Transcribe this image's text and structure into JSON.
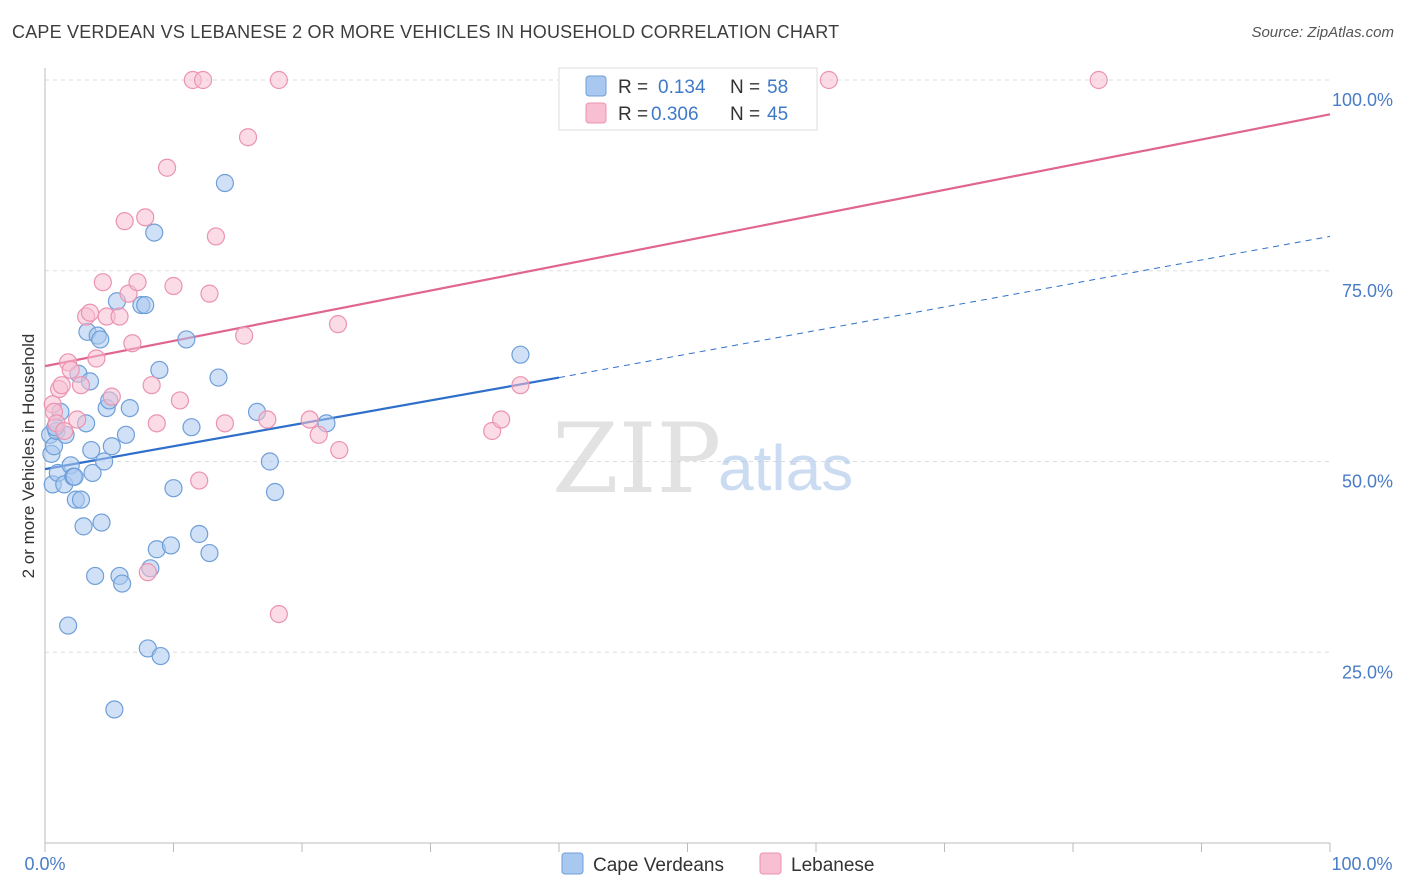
{
  "header": {
    "title": "CAPE VERDEAN VS LEBANESE 2 OR MORE VEHICLES IN HOUSEHOLD CORRELATION CHART",
    "source": "Source: ZipAtlas.com"
  },
  "watermark": {
    "zip": "ZIP",
    "atlas": "atlas"
  },
  "legend": {
    "series": [
      {
        "r_label": "R =",
        "r_value": "0.134",
        "n_label": "N =",
        "n_value": "58"
      },
      {
        "r_label": "R =",
        "r_value": "0.306",
        "n_label": "N =",
        "n_value": "45"
      }
    ],
    "bottom": [
      "Cape Verdeans",
      "Lebanese"
    ]
  },
  "colors": {
    "blue_fill": "#a9c8f0",
    "blue_stroke": "#6f9fd8",
    "blue_line": "#2f6fcb",
    "pink_fill": "#f7bfd1",
    "pink_stroke": "#eb93b0",
    "pink_line": "#e0668f",
    "tick": "#4a7cc7",
    "grid": "#dddddd"
  },
  "chart_data": {
    "type": "scatter",
    "title": "CAPE VERDEAN VS LEBANESE 2 OR MORE VEHICLES IN HOUSEHOLD CORRELATION CHART",
    "xlabel": "",
    "ylabel": "2 or more Vehicles in Household",
    "xlim": [
      0,
      100
    ],
    "ylim": [
      0,
      100
    ],
    "x_tick_labels": [
      "0.0%",
      "100.0%"
    ],
    "y_ticks": [
      25,
      50,
      75,
      100
    ],
    "y_tick_labels": [
      "25.0%",
      "50.0%",
      "75.0%",
      "100.0%"
    ],
    "series": [
      {
        "name": "Cape Verdeans",
        "r": 0.134,
        "n": 58,
        "trend": {
          "x0": 0,
          "y0": 49.0,
          "x1": 40,
          "y1": 61.0,
          "dash_to_x": 100,
          "dash_to_y": 79.5
        },
        "points": [
          [
            0.4,
            53.5
          ],
          [
            0.5,
            51.0
          ],
          [
            0.6,
            47.0
          ],
          [
            0.7,
            52.0
          ],
          [
            0.9,
            54.0
          ],
          [
            1.0,
            48.5
          ],
          [
            1.2,
            56.5
          ],
          [
            1.5,
            47.0
          ],
          [
            1.6,
            53.5
          ],
          [
            1.8,
            28.5
          ],
          [
            2.0,
            49.5
          ],
          [
            2.2,
            48.0
          ],
          [
            2.4,
            45.0
          ],
          [
            2.6,
            61.5
          ],
          [
            2.8,
            45.0
          ],
          [
            3.0,
            41.5
          ],
          [
            3.2,
            55.0
          ],
          [
            3.3,
            67.0
          ],
          [
            3.5,
            60.5
          ],
          [
            3.7,
            48.5
          ],
          [
            3.9,
            35.0
          ],
          [
            4.1,
            66.5
          ],
          [
            4.3,
            66.0
          ],
          [
            4.4,
            42.0
          ],
          [
            4.6,
            50.0
          ],
          [
            4.8,
            57.0
          ],
          [
            5.0,
            58.0
          ],
          [
            5.2,
            52.0
          ],
          [
            5.4,
            17.5
          ],
          [
            5.6,
            71.0
          ],
          [
            5.8,
            35.0
          ],
          [
            6.0,
            34.0
          ],
          [
            6.3,
            53.5
          ],
          [
            6.6,
            57.0
          ],
          [
            7.5,
            70.5
          ],
          [
            7.8,
            70.5
          ],
          [
            8.0,
            25.5
          ],
          [
            8.2,
            36.0
          ],
          [
            8.5,
            80.0
          ],
          [
            8.7,
            38.5
          ],
          [
            8.9,
            62.0
          ],
          [
            9.0,
            24.5
          ],
          [
            9.8,
            39.0
          ],
          [
            10.0,
            46.5
          ],
          [
            11.0,
            66.0
          ],
          [
            11.4,
            54.5
          ],
          [
            12.0,
            40.5
          ],
          [
            12.8,
            38.0
          ],
          [
            13.5,
            61.0
          ],
          [
            14.0,
            86.5
          ],
          [
            16.5,
            56.5
          ],
          [
            17.5,
            50.0
          ],
          [
            17.9,
            46.0
          ],
          [
            21.9,
            55.0
          ],
          [
            37.0,
            64.0
          ],
          [
            2.3,
            48.0
          ],
          [
            0.8,
            54.5
          ],
          [
            3.6,
            51.5
          ]
        ]
      },
      {
        "name": "Lebanese",
        "r": 0.306,
        "n": 45,
        "trend": {
          "x0": 0,
          "y0": 62.5,
          "x1": 100,
          "y1": 95.5
        },
        "points": [
          [
            0.6,
            57.5
          ],
          [
            0.7,
            56.5
          ],
          [
            0.9,
            55.0
          ],
          [
            1.1,
            59.5
          ],
          [
            1.3,
            60.0
          ],
          [
            1.5,
            54.0
          ],
          [
            1.8,
            63.0
          ],
          [
            2.0,
            62.0
          ],
          [
            2.5,
            55.5
          ],
          [
            2.8,
            60.0
          ],
          [
            3.2,
            69.0
          ],
          [
            3.5,
            69.5
          ],
          [
            4.0,
            63.5
          ],
          [
            4.5,
            73.5
          ],
          [
            4.8,
            69.0
          ],
          [
            5.2,
            58.5
          ],
          [
            5.8,
            69.0
          ],
          [
            6.2,
            81.5
          ],
          [
            6.5,
            72.0
          ],
          [
            6.8,
            65.5
          ],
          [
            7.2,
            73.5
          ],
          [
            7.8,
            82.0
          ],
          [
            8.0,
            35.5
          ],
          [
            8.3,
            60.0
          ],
          [
            8.7,
            55.0
          ],
          [
            9.5,
            88.5
          ],
          [
            10.0,
            73.0
          ],
          [
            10.5,
            58.0
          ],
          [
            11.5,
            100.0
          ],
          [
            12.0,
            47.5
          ],
          [
            12.3,
            100.0
          ],
          [
            12.8,
            72.0
          ],
          [
            13.3,
            79.5
          ],
          [
            14.0,
            55.0
          ],
          [
            15.5,
            66.5
          ],
          [
            15.8,
            92.5
          ],
          [
            17.3,
            55.5
          ],
          [
            18.2,
            100.0
          ],
          [
            18.2,
            30.0
          ],
          [
            20.6,
            55.5
          ],
          [
            21.3,
            53.5
          ],
          [
            22.8,
            68.0
          ],
          [
            22.9,
            51.5
          ],
          [
            34.8,
            54.0
          ],
          [
            37.0,
            60.0
          ]
        ],
        "extra_points": [
          [
            35.5,
            55.5
          ],
          [
            61.0,
            100.0
          ],
          [
            82.0,
            100.0
          ]
        ]
      }
    ]
  }
}
